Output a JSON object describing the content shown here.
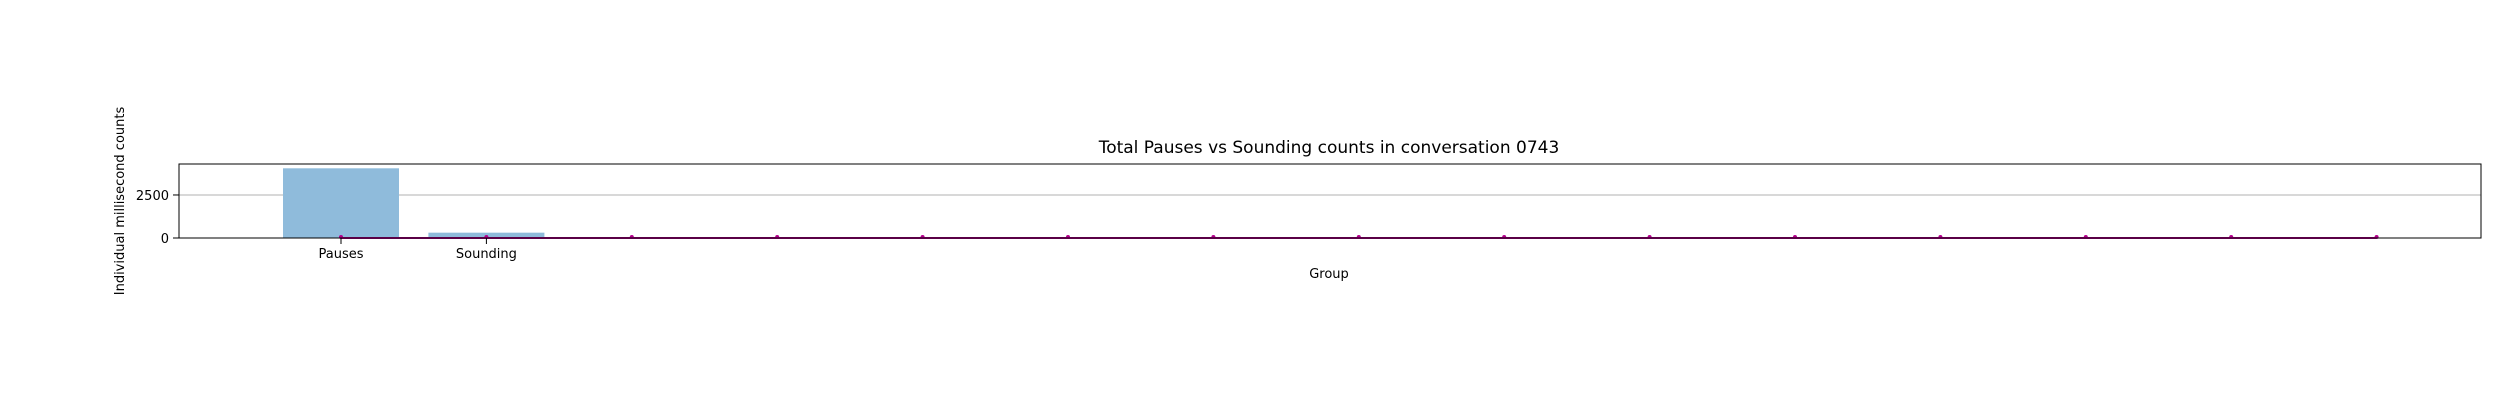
{
  "chart_data": {
    "type": "bar",
    "title": "Total Pauses vs Sounding counts in conversation 0743",
    "xlabel": "Group",
    "ylabel": "Individual millisecond counts",
    "categories": [
      "Pauses",
      "Sounding"
    ],
    "values": [
      4050,
      310
    ],
    "ylim": [
      0,
      4300
    ],
    "yticks": [
      0,
      2500
    ],
    "grid": "y",
    "bar_color": "#8fbbdb",
    "overlay_line": {
      "color": "#b4008c",
      "values": [
        0,
        0,
        0,
        0,
        0,
        0,
        0,
        0,
        0,
        0,
        0,
        0,
        0,
        0,
        0
      ]
    }
  }
}
